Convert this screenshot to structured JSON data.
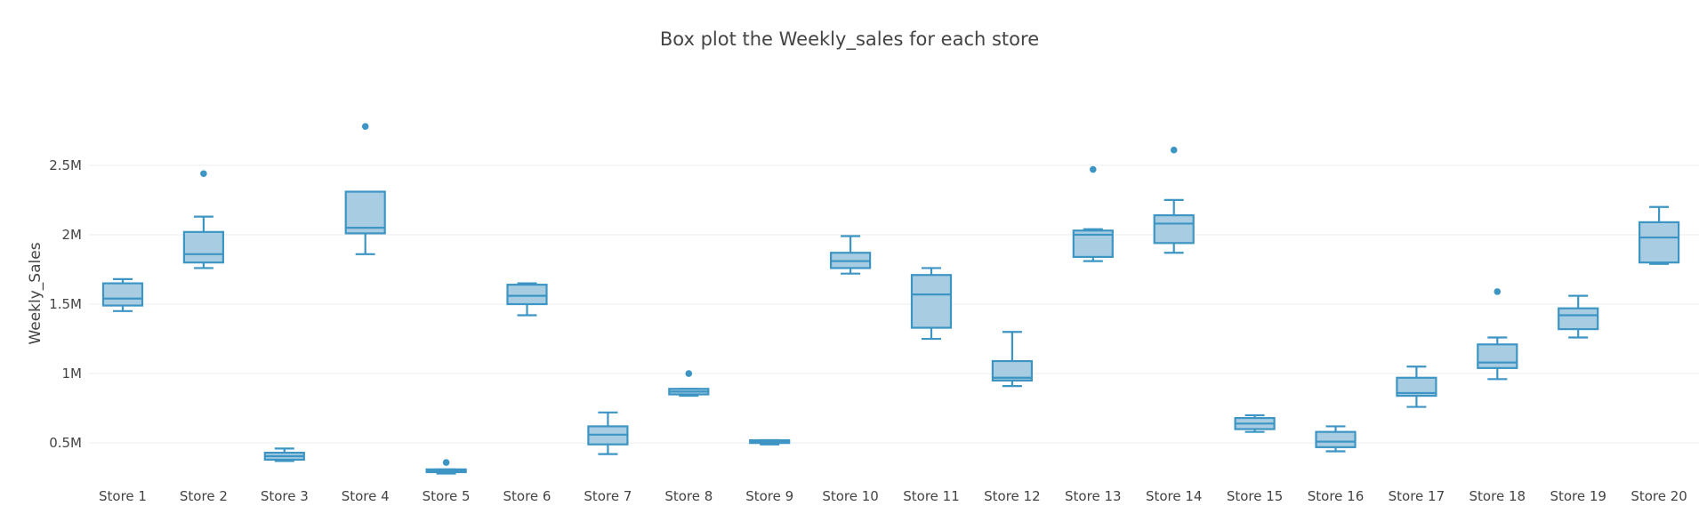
{
  "chart_data": {
    "type": "box",
    "title": "Box plot the Weekly_sales for each store",
    "xlabel": "",
    "ylabel": "Weekly_Sales",
    "ylim": [
      200000,
      3050000
    ],
    "yticks": [
      500000,
      1000000,
      1500000,
      2000000,
      2500000
    ],
    "ytick_labels": [
      "0.5M",
      "1M",
      "1.5M",
      "2M",
      "2.5M"
    ],
    "grid": true,
    "legend": "none",
    "colors": {
      "box_fill": "#a8cde3",
      "box_line": "#3d95c4",
      "grid": "#eeeeee",
      "text": "#444444"
    },
    "categories": [
      "Store 1",
      "Store 2",
      "Store 3",
      "Store 4",
      "Store 5",
      "Store 6",
      "Store 7",
      "Store 8",
      "Store 9",
      "Store 10",
      "Store 11",
      "Store 12",
      "Store 13",
      "Store 14",
      "Store 15",
      "Store 16",
      "Store 17",
      "Store 18",
      "Store 19",
      "Store 20"
    ],
    "boxes": [
      {
        "min": 1450000,
        "q1": 1490000,
        "median": 1540000,
        "q3": 1650000,
        "max": 1680000,
        "outliers": []
      },
      {
        "min": 1760000,
        "q1": 1800000,
        "median": 1860000,
        "q3": 2020000,
        "max": 2130000,
        "outliers": [
          2440000
        ]
      },
      {
        "min": 370000,
        "q1": 380000,
        "median": 405000,
        "q3": 430000,
        "max": 460000,
        "outliers": []
      },
      {
        "min": 1860000,
        "q1": 2010000,
        "median": 2050000,
        "q3": 2310000,
        "max": 2310000,
        "outliers": [
          2780000
        ]
      },
      {
        "min": 280000,
        "q1": 290000,
        "median": 300000,
        "q3": 310000,
        "max": 310000,
        "outliers": [
          360000
        ]
      },
      {
        "min": 1420000,
        "q1": 1500000,
        "median": 1560000,
        "q3": 1640000,
        "max": 1650000,
        "outliers": []
      },
      {
        "min": 420000,
        "q1": 490000,
        "median": 560000,
        "q3": 620000,
        "max": 720000,
        "outliers": []
      },
      {
        "min": 840000,
        "q1": 850000,
        "median": 870000,
        "q3": 890000,
        "max": 890000,
        "outliers": [
          1000000
        ]
      },
      {
        "min": 490000,
        "q1": 500000,
        "median": 510000,
        "q3": 520000,
        "max": 520000,
        "outliers": []
      },
      {
        "min": 1720000,
        "q1": 1760000,
        "median": 1810000,
        "q3": 1870000,
        "max": 1990000,
        "outliers": []
      },
      {
        "min": 1250000,
        "q1": 1330000,
        "median": 1570000,
        "q3": 1710000,
        "max": 1760000,
        "outliers": []
      },
      {
        "min": 910000,
        "q1": 950000,
        "median": 970000,
        "q3": 1090000,
        "max": 1300000,
        "outliers": []
      },
      {
        "min": 1810000,
        "q1": 1840000,
        "median": 2000000,
        "q3": 2030000,
        "max": 2040000,
        "outliers": [
          2470000
        ]
      },
      {
        "min": 1870000,
        "q1": 1940000,
        "median": 2080000,
        "q3": 2140000,
        "max": 2250000,
        "outliers": [
          2610000
        ]
      },
      {
        "min": 580000,
        "q1": 600000,
        "median": 640000,
        "q3": 680000,
        "max": 700000,
        "outliers": []
      },
      {
        "min": 440000,
        "q1": 470000,
        "median": 510000,
        "q3": 580000,
        "max": 620000,
        "outliers": []
      },
      {
        "min": 760000,
        "q1": 840000,
        "median": 860000,
        "q3": 970000,
        "max": 1050000,
        "outliers": []
      },
      {
        "min": 960000,
        "q1": 1040000,
        "median": 1080000,
        "q3": 1210000,
        "max": 1260000,
        "outliers": [
          1590000
        ]
      },
      {
        "min": 1260000,
        "q1": 1320000,
        "median": 1420000,
        "q3": 1470000,
        "max": 1560000,
        "outliers": []
      },
      {
        "min": 1790000,
        "q1": 1800000,
        "median": 1980000,
        "q3": 2090000,
        "max": 2200000,
        "outliers": []
      }
    ]
  }
}
